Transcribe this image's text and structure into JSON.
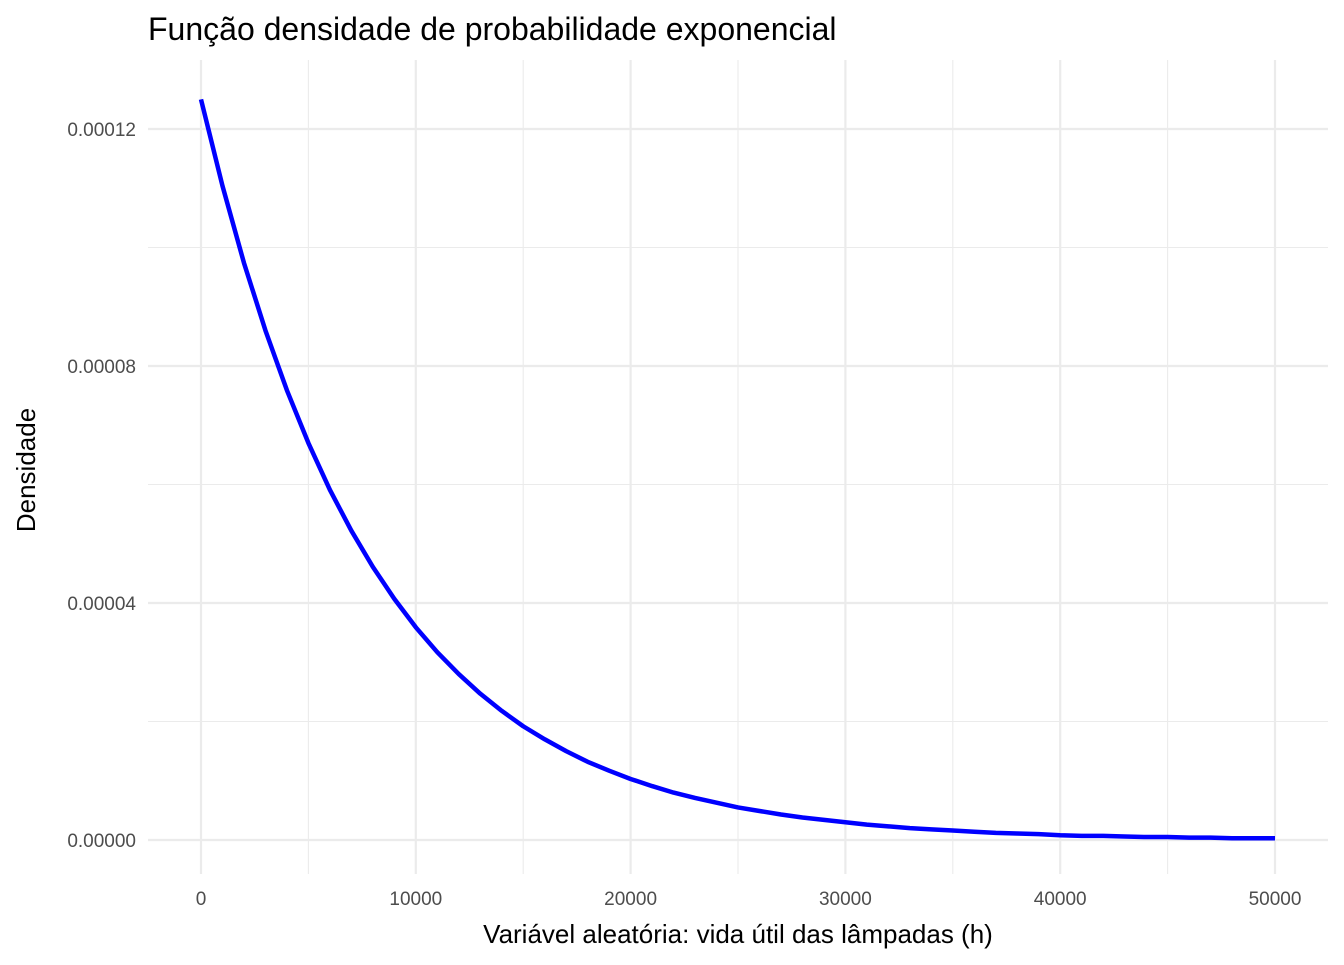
{
  "chart_data": {
    "type": "line",
    "title": "Função densidade de probabilidade exponencial",
    "xlabel": "Variável aleatória: vida útil das lâmpadas (h)",
    "ylabel": "Densidade",
    "xlim": [
      0,
      50000
    ],
    "ylim": [
      0,
      0.000125
    ],
    "x_ticks": [
      0,
      10000,
      20000,
      30000,
      40000,
      50000
    ],
    "x_tick_labels": [
      "0",
      "10000",
      "20000",
      "30000",
      "40000",
      "50000"
    ],
    "x_minor_ticks": [
      5000,
      15000,
      25000,
      35000,
      45000
    ],
    "y_ticks": [
      0,
      4e-05,
      8e-05,
      0.00012
    ],
    "y_tick_labels": [
      "0.00000",
      "0.00004",
      "0.00008",
      "0.00012"
    ],
    "y_minor_ticks": [
      2e-05,
      6e-05,
      0.0001
    ],
    "grid": true,
    "legend": "none",
    "series": [
      {
        "color": "#0000ff",
        "x": [
          0,
          1000,
          2000,
          3000,
          4000,
          5000,
          6000,
          7000,
          8000,
          9000,
          10000,
          11000,
          12000,
          13000,
          14000,
          15000,
          16000,
          17000,
          18000,
          19000,
          20000,
          21000,
          22000,
          23000,
          24000,
          25000,
          26000,
          27000,
          28000,
          29000,
          30000,
          31000,
          32000,
          33000,
          34000,
          35000,
          36000,
          37000,
          38000,
          39000,
          40000,
          41000,
          42000,
          43000,
          44000,
          45000,
          46000,
          47000,
          48000,
          49000,
          50000
        ],
        "y": [
          0.000125,
          0.0001104,
          9.74e-05,
          8.6e-05,
          7.59e-05,
          6.7e-05,
          5.91e-05,
          5.22e-05,
          4.61e-05,
          4.07e-05,
          3.59e-05,
          3.17e-05,
          2.8e-05,
          2.47e-05,
          2.18e-05,
          1.92e-05,
          1.7e-05,
          1.5e-05,
          1.32e-05,
          1.17e-05,
          1.03e-05,
          9.1e-06,
          8e-06,
          7.1e-06,
          6.3e-06,
          5.5e-06,
          4.9e-06,
          4.3e-06,
          3.8e-06,
          3.4e-06,
          3e-06,
          2.6e-06,
          2.3e-06,
          2e-06,
          1.8e-06,
          1.6e-06,
          1.4e-06,
          1.2e-06,
          1.1e-06,
          1e-06,
          8e-07,
          7e-07,
          7e-07,
          6e-07,
          5e-07,
          5e-07,
          4e-07,
          4e-07,
          3e-07,
          3e-07,
          3e-07
        ]
      }
    ]
  }
}
